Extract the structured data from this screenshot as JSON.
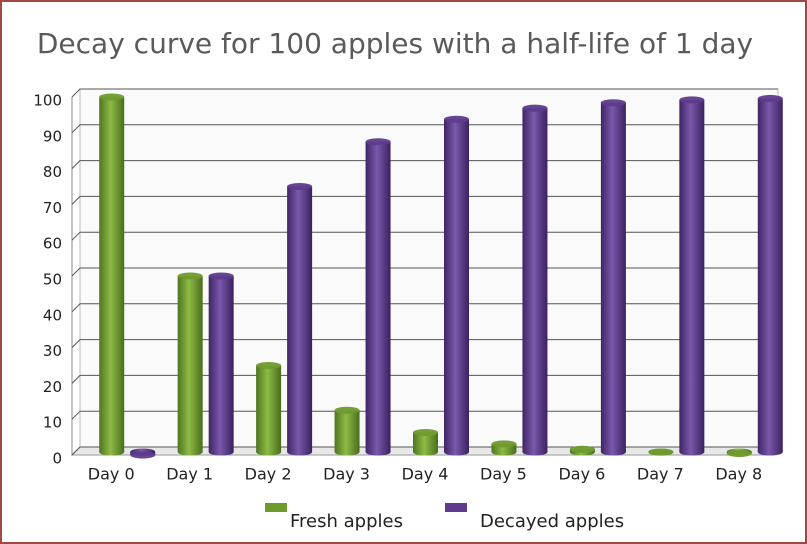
{
  "chart_data": {
    "type": "bar",
    "title": "Decay curve for 100 apples with a half-life of 1 day",
    "categories": [
      "Day 0",
      "Day 1",
      "Day 2",
      "Day 3",
      "Day 4",
      "Day 5",
      "Day 6",
      "Day 7",
      "Day 8"
    ],
    "series": [
      {
        "name": "Fresh apples",
        "color": "#6f9a2e",
        "values": [
          100,
          50,
          25,
          12.5,
          6.3,
          3.1,
          1.6,
          0.8,
          0.4
        ]
      },
      {
        "name": "Decayed apples",
        "color": "#5e3b8c",
        "values": [
          0,
          50,
          75,
          87.5,
          93.8,
          96.9,
          98.4,
          99.2,
          99.6
        ]
      }
    ],
    "ylim": [
      0,
      100
    ],
    "yticks": [
      0,
      10,
      20,
      30,
      40,
      50,
      60,
      70,
      80,
      90,
      100
    ],
    "grid": true,
    "legend": "bottom"
  }
}
